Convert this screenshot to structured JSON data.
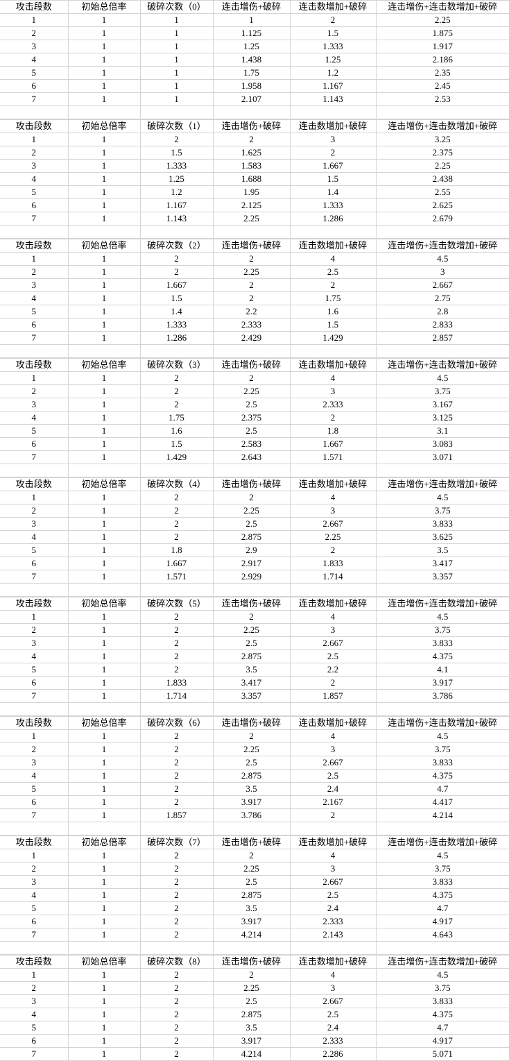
{
  "table_blocks": [
    {
      "headers": [
        "攻击段数",
        "初始总倍率",
        "破碎次数（0）",
        "连击增伤+破碎",
        "连击数增加+破碎",
        "连击增伤+连击数增加+破碎"
      ],
      "rows": [
        [
          "1",
          "1",
          "1",
          "1",
          "2",
          "2.25"
        ],
        [
          "2",
          "1",
          "1",
          "1.125",
          "1.5",
          "1.875"
        ],
        [
          "3",
          "1",
          "1",
          "1.25",
          "1.333",
          "1.917"
        ],
        [
          "4",
          "1",
          "1",
          "1.438",
          "1.25",
          "2.186"
        ],
        [
          "5",
          "1",
          "1",
          "1.75",
          "1.2",
          "2.35"
        ],
        [
          "6",
          "1",
          "1",
          "1.958",
          "1.167",
          "2.45"
        ],
        [
          "7",
          "1",
          "1",
          "2.107",
          "1.143",
          "2.53"
        ]
      ]
    },
    {
      "headers": [
        "攻击段数",
        "初始总倍率",
        "破碎次数（1）",
        "连击增伤+破碎",
        "连击数增加+破碎",
        "连击增伤+连击数增加+破碎"
      ],
      "rows": [
        [
          "1",
          "1",
          "2",
          "2",
          "3",
          "3.25"
        ],
        [
          "2",
          "1",
          "1.5",
          "1.625",
          "2",
          "2.375"
        ],
        [
          "3",
          "1",
          "1.333",
          "1.583",
          "1.667",
          "2.25"
        ],
        [
          "4",
          "1",
          "1.25",
          "1.688",
          "1.5",
          "2.438"
        ],
        [
          "5",
          "1",
          "1.2",
          "1.95",
          "1.4",
          "2.55"
        ],
        [
          "6",
          "1",
          "1.167",
          "2.125",
          "1.333",
          "2.625"
        ],
        [
          "7",
          "1",
          "1.143",
          "2.25",
          "1.286",
          "2.679"
        ]
      ]
    },
    {
      "headers": [
        "攻击段数",
        "初始总倍率",
        "破碎次数（2）",
        "连击增伤+破碎",
        "连击数增加+破碎",
        "连击增伤+连击数增加+破碎"
      ],
      "rows": [
        [
          "1",
          "1",
          "2",
          "2",
          "4",
          "4.5"
        ],
        [
          "2",
          "1",
          "2",
          "2.25",
          "2.5",
          "3"
        ],
        [
          "3",
          "1",
          "1.667",
          "2",
          "2",
          "2.667"
        ],
        [
          "4",
          "1",
          "1.5",
          "2",
          "1.75",
          "2.75"
        ],
        [
          "5",
          "1",
          "1.4",
          "2.2",
          "1.6",
          "2.8"
        ],
        [
          "6",
          "1",
          "1.333",
          "2.333",
          "1.5",
          "2.833"
        ],
        [
          "7",
          "1",
          "1.286",
          "2.429",
          "1.429",
          "2.857"
        ]
      ]
    },
    {
      "headers": [
        "攻击段数",
        "初始总倍率",
        "破碎次数（3）",
        "连击增伤+破碎",
        "连击数增加+破碎",
        "连击增伤+连击数增加+破碎"
      ],
      "rows": [
        [
          "1",
          "1",
          "2",
          "2",
          "4",
          "4.5"
        ],
        [
          "2",
          "1",
          "2",
          "2.25",
          "3",
          "3.75"
        ],
        [
          "3",
          "1",
          "2",
          "2.5",
          "2.333",
          "3.167"
        ],
        [
          "4",
          "1",
          "1.75",
          "2.375",
          "2",
          "3.125"
        ],
        [
          "5",
          "1",
          "1.6",
          "2.5",
          "1.8",
          "3.1"
        ],
        [
          "6",
          "1",
          "1.5",
          "2.583",
          "1.667",
          "3.083"
        ],
        [
          "7",
          "1",
          "1.429",
          "2.643",
          "1.571",
          "3.071"
        ]
      ]
    },
    {
      "headers": [
        "攻击段数",
        "初始总倍率",
        "破碎次数（4）",
        "连击增伤+破碎",
        "连击数增加+破碎",
        "连击增伤+连击数增加+破碎"
      ],
      "rows": [
        [
          "1",
          "1",
          "2",
          "2",
          "4",
          "4.5"
        ],
        [
          "2",
          "1",
          "2",
          "2.25",
          "3",
          "3.75"
        ],
        [
          "3",
          "1",
          "2",
          "2.5",
          "2.667",
          "3.833"
        ],
        [
          "4",
          "1",
          "2",
          "2.875",
          "2.25",
          "3.625"
        ],
        [
          "5",
          "1",
          "1.8",
          "2.9",
          "2",
          "3.5"
        ],
        [
          "6",
          "1",
          "1.667",
          "2.917",
          "1.833",
          "3.417"
        ],
        [
          "7",
          "1",
          "1.571",
          "2.929",
          "1.714",
          "3.357"
        ]
      ]
    },
    {
      "headers": [
        "攻击段数",
        "初始总倍率",
        "破碎次数（5）",
        "连击增伤+破碎",
        "连击数增加+破碎",
        "连击增伤+连击数增加+破碎"
      ],
      "rows": [
        [
          "1",
          "1",
          "2",
          "2",
          "4",
          "4.5"
        ],
        [
          "2",
          "1",
          "2",
          "2.25",
          "3",
          "3.75"
        ],
        [
          "3",
          "1",
          "2",
          "2.5",
          "2.667",
          "3.833"
        ],
        [
          "4",
          "1",
          "2",
          "2.875",
          "2.5",
          "4.375"
        ],
        [
          "5",
          "1",
          "2",
          "3.5",
          "2.2",
          "4.1"
        ],
        [
          "6",
          "1",
          "1.833",
          "3.417",
          "2",
          "3.917"
        ],
        [
          "7",
          "1",
          "1.714",
          "3.357",
          "1.857",
          "3.786"
        ]
      ]
    },
    {
      "headers": [
        "攻击段数",
        "初始总倍率",
        "破碎次数（6）",
        "连击增伤+破碎",
        "连击数增加+破碎",
        "连击增伤+连击数增加+破碎"
      ],
      "rows": [
        [
          "1",
          "1",
          "2",
          "2",
          "4",
          "4.5"
        ],
        [
          "2",
          "1",
          "2",
          "2.25",
          "3",
          "3.75"
        ],
        [
          "3",
          "1",
          "2",
          "2.5",
          "2.667",
          "3.833"
        ],
        [
          "4",
          "1",
          "2",
          "2.875",
          "2.5",
          "4.375"
        ],
        [
          "5",
          "1",
          "2",
          "3.5",
          "2.4",
          "4.7"
        ],
        [
          "6",
          "1",
          "2",
          "3.917",
          "2.167",
          "4.417"
        ],
        [
          "7",
          "1",
          "1.857",
          "3.786",
          "2",
          "4.214"
        ]
      ]
    },
    {
      "headers": [
        "攻击段数",
        "初始总倍率",
        "破碎次数（7）",
        "连击增伤+破碎",
        "连击数增加+破碎",
        "连击增伤+连击数增加+破碎"
      ],
      "rows": [
        [
          "1",
          "1",
          "2",
          "2",
          "4",
          "4.5"
        ],
        [
          "2",
          "1",
          "2",
          "2.25",
          "3",
          "3.75"
        ],
        [
          "3",
          "1",
          "2",
          "2.5",
          "2.667",
          "3.833"
        ],
        [
          "4",
          "1",
          "2",
          "2.875",
          "2.5",
          "4.375"
        ],
        [
          "5",
          "1",
          "2",
          "3.5",
          "2.4",
          "4.7"
        ],
        [
          "6",
          "1",
          "2",
          "3.917",
          "2.333",
          "4.917"
        ],
        [
          "7",
          "1",
          "2",
          "4.214",
          "2.143",
          "4.643"
        ]
      ]
    },
    {
      "headers": [
        "攻击段数",
        "初始总倍率",
        "破碎次数（8）",
        "连击增伤+破碎",
        "连击数增加+破碎",
        "连击增伤+连击数增加+破碎"
      ],
      "rows": [
        [
          "1",
          "1",
          "2",
          "2",
          "4",
          "4.5"
        ],
        [
          "2",
          "1",
          "2",
          "2.25",
          "3",
          "3.75"
        ],
        [
          "3",
          "1",
          "2",
          "2.5",
          "2.667",
          "3.833"
        ],
        [
          "4",
          "1",
          "2",
          "2.875",
          "2.5",
          "4.375"
        ],
        [
          "5",
          "1",
          "2",
          "3.5",
          "2.4",
          "4.7"
        ],
        [
          "6",
          "1",
          "2",
          "3.917",
          "2.333",
          "4.917"
        ],
        [
          "7",
          "1",
          "2",
          "4.214",
          "2.286",
          "5.071"
        ]
      ]
    }
  ],
  "colors": {
    "gridline": "#d4d4d4",
    "text": "#000000",
    "background": "#ffffff"
  }
}
